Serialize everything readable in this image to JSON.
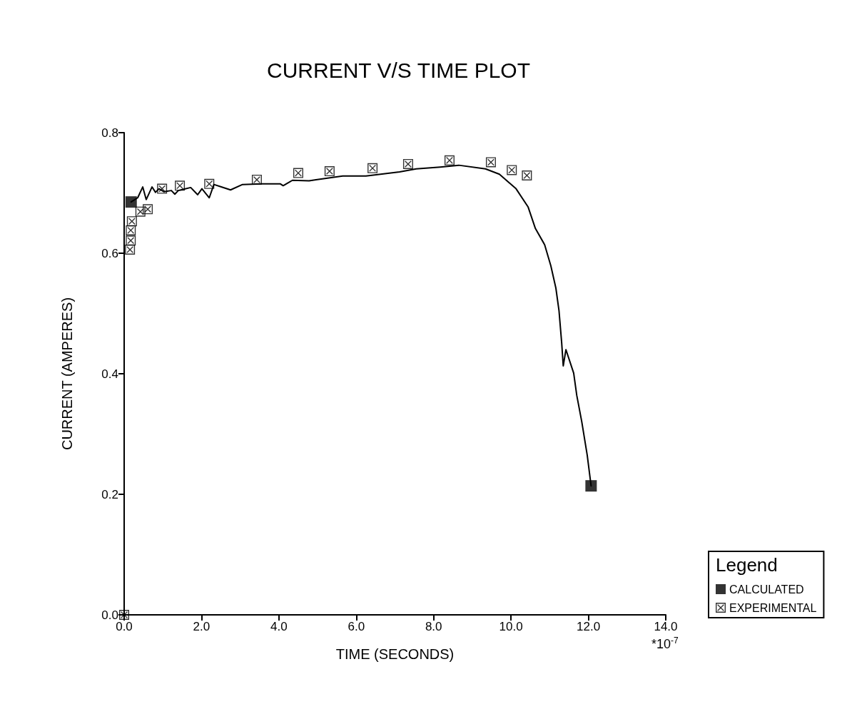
{
  "chart_data": {
    "type": "line",
    "title": "CURRENT V/S TIME PLOT",
    "xlabel": "TIME (SECONDS)",
    "ylabel": "CURRENT (AMPERES)",
    "annotations": [
      "*10$^{-7}$"
    ],
    "xlim": [
      0,
      14
    ],
    "xticks": [
      {
        "value": 0,
        "label": "0.0"
      },
      {
        "value": 2,
        "label": "2.0"
      },
      {
        "value": 4,
        "label": "4.0"
      },
      {
        "value": 6,
        "label": "6.0"
      },
      {
        "value": 8,
        "label": "8.0"
      },
      {
        "value": 10,
        "label": "10.0"
      },
      {
        "value": 12,
        "label": "12.0"
      },
      {
        "value": 14,
        "label": "14.0"
      }
    ],
    "ylim": [
      0,
      0.8
    ],
    "yticks": [
      {
        "value": 0,
        "label": "0.0"
      },
      {
        "value": 0.2,
        "label": "0.2"
      },
      {
        "value": 0.4,
        "label": "0.4"
      },
      {
        "value": 0.6,
        "label": "0.6"
      },
      {
        "value": 0.8,
        "label": "0.8"
      }
    ],
    "grid": false,
    "legend": "bottom right",
    "legend_title": "Legend",
    "line_style": "solid",
    "series": [
      {
        "name": "CALCULATED",
        "type": "scatter",
        "marker": "square",
        "color": "#000000",
        "x": [
          0.18,
          12.07
        ],
        "values": [
          0.685,
          0.214
        ]
      },
      {
        "marker": "none",
        "color": "#000000",
        "x": [
          0.18,
          0.35,
          0.48,
          0.57,
          0.72,
          0.81,
          0.9,
          1.03,
          1.22,
          1.31,
          1.4,
          1.72,
          1.9,
          2.01,
          2.2,
          2.32,
          2.51,
          2.75,
          3.06,
          3.56,
          4.04,
          4.11,
          4.35,
          4.78,
          4.96,
          5.65,
          6.25,
          7.12,
          7.55,
          8.17,
          8.65,
          9.34,
          9.7,
          10.13,
          10.44,
          10.63,
          10.87,
          11.03,
          11.16,
          11.24,
          11.31,
          11.35,
          11.42,
          11.62,
          11.7,
          11.83,
          11.97,
          12.07
        ],
        "values": [
          0.685,
          0.692,
          0.71,
          0.689,
          0.71,
          0.701,
          0.707,
          0.702,
          0.704,
          0.698,
          0.704,
          0.709,
          0.697,
          0.707,
          0.692,
          0.714,
          0.71,
          0.705,
          0.714,
          0.715,
          0.715,
          0.712,
          0.721,
          0.72,
          0.722,
          0.728,
          0.728,
          0.735,
          0.74,
          0.743,
          0.746,
          0.74,
          0.731,
          0.707,
          0.677,
          0.641,
          0.614,
          0.579,
          0.542,
          0.505,
          0.451,
          0.413,
          0.44,
          0.401,
          0.364,
          0.32,
          0.265,
          0.214
        ]
      },
      {
        "name": "EXPERIMENTAL",
        "type": "scatter",
        "marker": "cross",
        "color": "#000000",
        "x": [
          0,
          0.15,
          0.17,
          0.17,
          0.2,
          0.42,
          0.61,
          0.98,
          1.44,
          2.2,
          3.43,
          4.5,
          5.31,
          6.42,
          7.34,
          8.41,
          9.48,
          10.02,
          10.41
        ],
        "values": [
          0,
          0.606,
          0.621,
          0.638,
          0.653,
          0.669,
          0.673,
          0.707,
          0.712,
          0.715,
          0.722,
          0.733,
          0.736,
          0.741,
          0.748,
          0.754,
          0.751,
          0.738,
          0.729
        ]
      }
    ]
  }
}
